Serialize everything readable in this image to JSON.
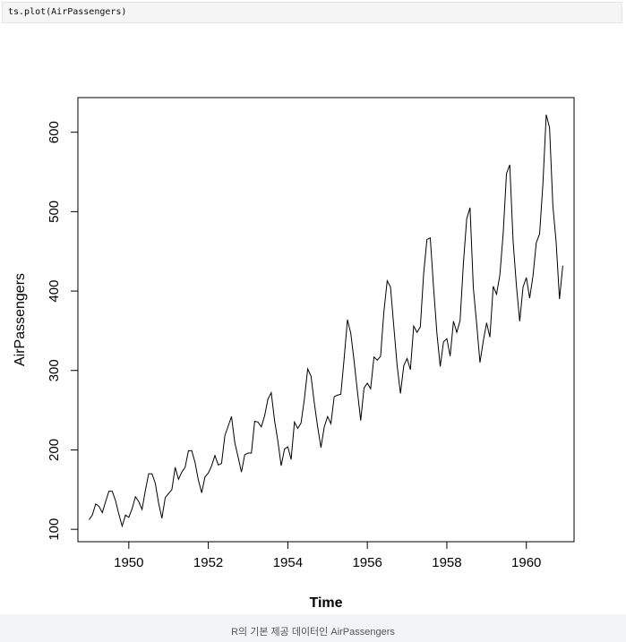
{
  "code": "ts.plot(AirPassengers)",
  "caption": "R의 기본 제공 데이터인 AirPassengers",
  "chart_data": {
    "type": "line",
    "xlabel": "Time",
    "ylabel": "AirPassengers",
    "xlim": [
      1948.72,
      1961.2
    ],
    "ylim": [
      84.4,
      643.6
    ],
    "xticks": [
      1950,
      1952,
      1954,
      1956,
      1958,
      1960
    ],
    "yticks": [
      100,
      200,
      300,
      400,
      500,
      600
    ],
    "grid": false,
    "line_color": "#000000",
    "x_start": 1949,
    "x_step": 0.0833333,
    "values": [
      112,
      118,
      132,
      129,
      121,
      135,
      148,
      148,
      136,
      119,
      104,
      118,
      115,
      126,
      141,
      135,
      125,
      149,
      170,
      170,
      158,
      133,
      114,
      140,
      145,
      150,
      178,
      163,
      172,
      178,
      199,
      199,
      184,
      162,
      146,
      166,
      171,
      180,
      193,
      181,
      183,
      218,
      230,
      242,
      209,
      191,
      172,
      194,
      196,
      196,
      236,
      235,
      229,
      243,
      264,
      272,
      237,
      211,
      180,
      201,
      204,
      188,
      235,
      227,
      234,
      264,
      302,
      293,
      259,
      229,
      203,
      229,
      242,
      233,
      267,
      269,
      270,
      315,
      364,
      347,
      312,
      274,
      237,
      278,
      284,
      277,
      317,
      313,
      318,
      374,
      413,
      405,
      355,
      306,
      271,
      306,
      315,
      301,
      356,
      348,
      355,
      422,
      465,
      467,
      404,
      347,
      305,
      336,
      340,
      318,
      362,
      348,
      363,
      435,
      491,
      505,
      404,
      359,
      310,
      337,
      360,
      342,
      406,
      396,
      420,
      472,
      548,
      559,
      463,
      407,
      362,
      405,
      417,
      391,
      419,
      461,
      472,
      535,
      622,
      606,
      508,
      461,
      390,
      432
    ]
  }
}
